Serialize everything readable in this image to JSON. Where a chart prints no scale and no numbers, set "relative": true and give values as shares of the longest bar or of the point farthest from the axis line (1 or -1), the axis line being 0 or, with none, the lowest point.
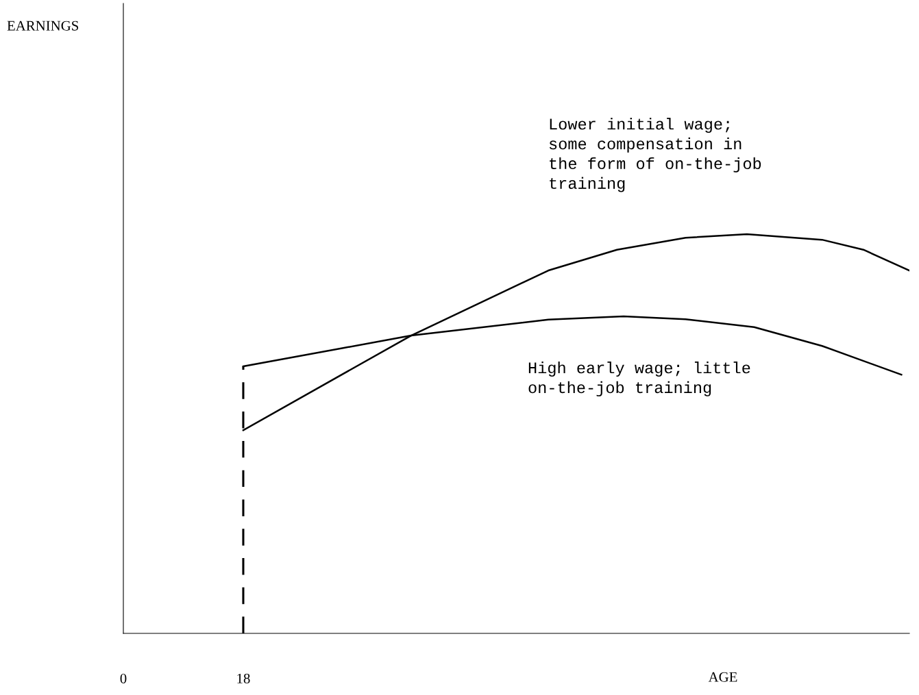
{
  "chart_data": {
    "type": "line",
    "relative": true,
    "xlabel": "AGE",
    "xlim": [
      0,
      118
    ],
    "xticks": [
      0,
      18
    ],
    "grid": false,
    "legend": false,
    "marker": "none",
    "line_style": "solid",
    "annotations": [
      "EARNINGS",
      "Lower initial wage;\nsome compensation in\nthe form of on-the-job\ntraining",
      "High early wage; little\non-the-job training"
    ],
    "ref_lines": [
      {
        "axis": "x",
        "value": 18,
        "line_style": "dashed",
        "color": "#000000"
      }
    ],
    "series": [
      {
        "color": "#000000",
        "x": [
          18,
          43.2,
          63.8,
          74.1,
          84.4,
          93.6,
          104.9,
          111.1,
          118
        ],
        "values": [
          0.509,
          0.746,
          0.909,
          0.961,
          0.991,
          1.0,
          0.986,
          0.961,
          0.909
        ]
      },
      {
        "color": "#000000",
        "x": [
          18,
          43.2,
          63.8,
          75.1,
          84.4,
          94.7,
          104.9,
          116.8
        ],
        "values": [
          0.669,
          0.746,
          0.786,
          0.794,
          0.787,
          0.767,
          0.72,
          0.648
        ]
      }
    ]
  }
}
